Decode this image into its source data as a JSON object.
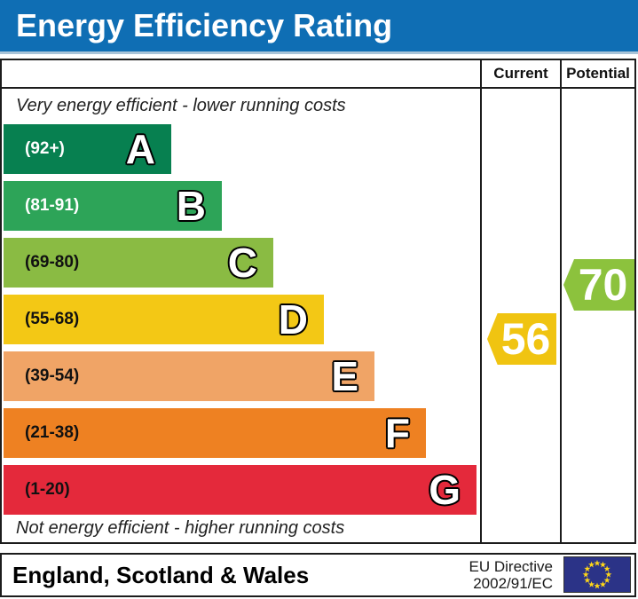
{
  "title": "Energy Efficiency Rating",
  "columns": {
    "current": "Current",
    "potential": "Potential"
  },
  "captions": {
    "top": "Very energy efficient - lower running costs",
    "bottom": "Not energy efficient - higher running costs"
  },
  "bands": [
    {
      "letter": "A",
      "range": "(92+)",
      "color": "#078050",
      "range_color": "#ffffff"
    },
    {
      "letter": "B",
      "range": "(81-91)",
      "color": "#2da458",
      "range_color": "#ffffff"
    },
    {
      "letter": "C",
      "range": "(69-80)",
      "color": "#8abb43",
      "range_color": "#111111"
    },
    {
      "letter": "D",
      "range": "(55-68)",
      "color": "#f3c815",
      "range_color": "#111111"
    },
    {
      "letter": "E",
      "range": "(39-54)",
      "color": "#f0a466",
      "range_color": "#111111"
    },
    {
      "letter": "F",
      "range": "(21-38)",
      "color": "#ee8122",
      "range_color": "#111111"
    },
    {
      "letter": "G",
      "range": "(1-20)",
      "color": "#e4293b",
      "range_color": "#111111"
    }
  ],
  "current": {
    "value": "56",
    "band": "D",
    "color": "#f0c411"
  },
  "potential": {
    "value": "70",
    "band": "C",
    "color": "#8cc23d"
  },
  "footer": {
    "region": "England, Scotland & Wales",
    "directive_line1": "EU Directive",
    "directive_line2": "2002/91/EC",
    "flag_bg_color": "#2b3387",
    "flag_star_color": "#ffd617"
  },
  "colors": {
    "header_blue": "#0f6eb4",
    "border": "#1c1c1c"
  },
  "chart_data": {
    "type": "bar",
    "orientation": "horizontal",
    "title": "Energy Efficiency Rating",
    "categories": [
      "A",
      "B",
      "C",
      "D",
      "E",
      "F",
      "G"
    ],
    "band_ranges": [
      "92+",
      "81-91",
      "69-80",
      "55-68",
      "39-54",
      "21-38",
      "1-20"
    ],
    "band_colors": [
      "#078050",
      "#2da458",
      "#8abb43",
      "#f3c815",
      "#f0a466",
      "#ee8122",
      "#e4293b"
    ],
    "annotations": [
      {
        "label": "Current",
        "value": 56,
        "band": "D",
        "color": "#f0c411"
      },
      {
        "label": "Potential",
        "value": 70,
        "band": "C",
        "color": "#8cc23d"
      }
    ],
    "notes": [
      "Very energy efficient - lower running costs",
      "Not energy efficient - higher running costs"
    ],
    "footer": "England, Scotland & Wales | EU Directive 2002/91/EC",
    "grid": false,
    "legend_position": "none"
  }
}
